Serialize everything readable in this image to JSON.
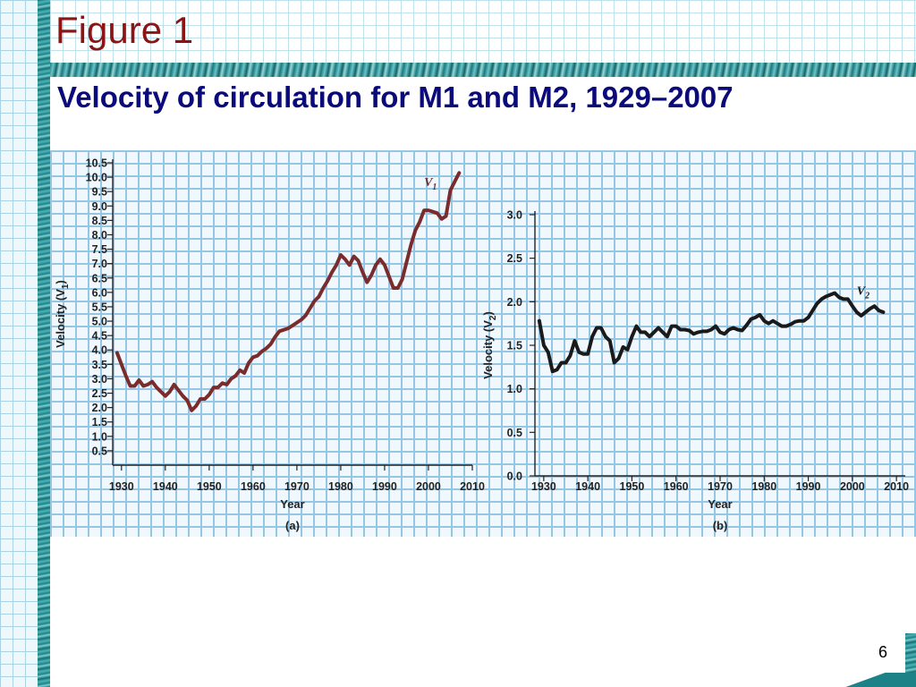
{
  "slide": {
    "title": "Figure 1",
    "subtitle": "Velocity of circulation for M1 and M2, 1929–2007",
    "page_number": "6"
  },
  "colors": {
    "title": "#8b1414",
    "subtitle": "#0a0a7a",
    "v1_line": "#7a2b2b",
    "v2_line": "#1a1a1a",
    "grid": "#95c7e5",
    "grid_bg": "#f1f8fd"
  },
  "chart_data": [
    {
      "type": "line",
      "panel": "(a)",
      "xlabel": "Year",
      "ylabel": "Velocity (V1)",
      "ylabel_main": "Velocity (V",
      "ylabel_sub": "1",
      "ylabel_close": ")",
      "series_label": "V",
      "series_sub": "1",
      "xlim": [
        1928,
        2010
      ],
      "ylim": [
        0,
        10.5
      ],
      "x_ticks": [
        "1930",
        "1940",
        "1950",
        "1960",
        "1970",
        "1980",
        "1990",
        "2000",
        "2010"
      ],
      "y_ticks": [
        "0.5",
        "1.0",
        "1.5",
        "2.0",
        "2.5",
        "3.0",
        "3.5",
        "4.0",
        "4.5",
        "5.0",
        "5.5",
        "6.0",
        "6.5",
        "7.0",
        "7.5",
        "8.0",
        "8.5",
        "9.0",
        "9.5",
        "10.0",
        "10.5"
      ],
      "series": [
        {
          "x": [
            1929,
            1930,
            1931,
            1932,
            1933,
            1934,
            1935,
            1936,
            1937,
            1938,
            1939,
            1940,
            1941,
            1942,
            1943,
            1944,
            1945,
            1946,
            1947,
            1948,
            1949,
            1950,
            1951,
            1952,
            1953,
            1954,
            1955,
            1956,
            1957,
            1958,
            1959,
            1960,
            1961,
            1962,
            1963,
            1964,
            1965,
            1966,
            1967,
            1968,
            1969,
            1970,
            1971,
            1972,
            1973,
            1974,
            1975,
            1976,
            1977,
            1978,
            1979,
            1980,
            1981,
            1982,
            1983,
            1984,
            1985,
            1986,
            1987,
            1988,
            1989,
            1990,
            1991,
            1992,
            1993,
            1994,
            1995,
            1996,
            1997,
            1998,
            1999,
            2000,
            2001,
            2002,
            2003,
            2004,
            2005,
            2006,
            2007
          ],
          "values": [
            3.9,
            3.5,
            3.1,
            2.75,
            2.75,
            2.95,
            2.75,
            2.8,
            2.9,
            2.7,
            2.55,
            2.4,
            2.55,
            2.8,
            2.6,
            2.4,
            2.25,
            1.9,
            2.05,
            2.3,
            2.3,
            2.45,
            2.7,
            2.7,
            2.85,
            2.8,
            3.0,
            3.1,
            3.3,
            3.2,
            3.55,
            3.75,
            3.8,
            3.95,
            4.05,
            4.2,
            4.45,
            4.65,
            4.7,
            4.75,
            4.85,
            4.95,
            5.05,
            5.2,
            5.45,
            5.7,
            5.85,
            6.15,
            6.4,
            6.7,
            6.95,
            7.3,
            7.15,
            6.95,
            7.25,
            7.1,
            6.7,
            6.35,
            6.6,
            6.95,
            7.15,
            6.95,
            6.55,
            6.15,
            6.15,
            6.45,
            7.05,
            7.65,
            8.15,
            8.45,
            8.85,
            8.85,
            8.8,
            8.75,
            8.55,
            8.65,
            9.55,
            9.85,
            10.15
          ]
        }
      ]
    },
    {
      "type": "line",
      "panel": "(b)",
      "xlabel": "Year",
      "ylabel": "Velocity (V2)",
      "ylabel_main": "Velocity (V",
      "ylabel_sub": "2",
      "ylabel_close": ")",
      "series_label": "V",
      "series_sub": "2",
      "xlim": [
        1928,
        2012
      ],
      "ylim": [
        0,
        3.0
      ],
      "x_ticks": [
        "1930",
        "1940",
        "1950",
        "1960",
        "1970",
        "1980",
        "1990",
        "2000",
        "2010"
      ],
      "y_ticks": [
        "0.0",
        "0.5",
        "1.0",
        "1.5",
        "2.0",
        "2.5",
        "3.0"
      ],
      "series": [
        {
          "x": [
            1929,
            1930,
            1931,
            1932,
            1933,
            1934,
            1935,
            1936,
            1937,
            1938,
            1939,
            1940,
            1941,
            1942,
            1943,
            1944,
            1945,
            1946,
            1947,
            1948,
            1949,
            1950,
            1951,
            1952,
            1953,
            1954,
            1955,
            1956,
            1957,
            1958,
            1959,
            1960,
            1961,
            1962,
            1963,
            1964,
            1965,
            1966,
            1967,
            1968,
            1969,
            1970,
            1971,
            1972,
            1973,
            1974,
            1975,
            1976,
            1977,
            1978,
            1979,
            1980,
            1981,
            1982,
            1983,
            1984,
            1985,
            1986,
            1987,
            1988,
            1989,
            1990,
            1991,
            1992,
            1993,
            1994,
            1995,
            1996,
            1997,
            1998,
            1999,
            2000,
            2001,
            2002,
            2003,
            2004,
            2005,
            2006,
            2007
          ],
          "values": [
            1.78,
            1.5,
            1.42,
            1.2,
            1.22,
            1.3,
            1.3,
            1.38,
            1.55,
            1.42,
            1.4,
            1.4,
            1.6,
            1.7,
            1.7,
            1.6,
            1.55,
            1.3,
            1.35,
            1.48,
            1.45,
            1.6,
            1.72,
            1.65,
            1.65,
            1.6,
            1.65,
            1.7,
            1.65,
            1.6,
            1.72,
            1.72,
            1.68,
            1.68,
            1.67,
            1.63,
            1.65,
            1.66,
            1.66,
            1.68,
            1.72,
            1.65,
            1.63,
            1.68,
            1.7,
            1.68,
            1.67,
            1.73,
            1.8,
            1.82,
            1.85,
            1.78,
            1.75,
            1.78,
            1.75,
            1.72,
            1.72,
            1.74,
            1.77,
            1.78,
            1.78,
            1.82,
            1.9,
            1.98,
            2.03,
            2.06,
            2.08,
            2.1,
            2.05,
            2.03,
            2.03,
            1.95,
            1.88,
            1.84,
            1.88,
            1.92,
            1.95,
            1.9,
            1.88
          ]
        }
      ]
    }
  ]
}
